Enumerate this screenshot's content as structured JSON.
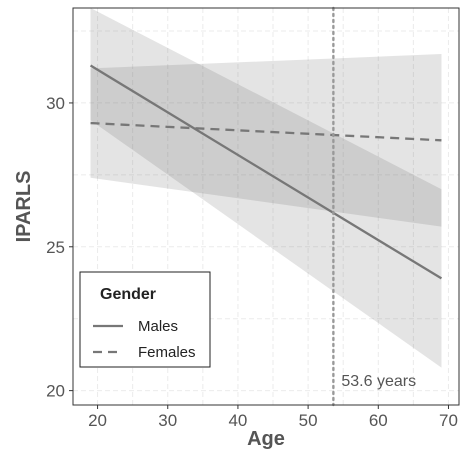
{
  "chart_data": {
    "type": "line",
    "title": "",
    "xlabel": "Age",
    "ylabel": "IPARLS",
    "xlim": [
      16.5,
      71.5
    ],
    "ylim": [
      19.5,
      33.3
    ],
    "x_ticks": [
      20,
      30,
      40,
      50,
      60,
      70
    ],
    "y_ticks": [
      20,
      25,
      30
    ],
    "grid": true,
    "legend": {
      "title": "Gender",
      "placement": "bottom-left"
    },
    "series": [
      {
        "name": "Males",
        "line_style": "solid",
        "x": [
          19,
          69
        ],
        "y": [
          31.3,
          23.9
        ],
        "ci_lower": [
          29.4,
          20.8
        ],
        "ci_upper": [
          33.3,
          27.0
        ]
      },
      {
        "name": "Females",
        "line_style": "dashed",
        "x": [
          19,
          69
        ],
        "y": [
          29.3,
          28.7
        ],
        "ci_lower": [
          27.4,
          25.7
        ],
        "ci_upper": [
          31.2,
          31.7
        ]
      }
    ],
    "reference_line": {
      "orientation": "vertical",
      "x": 53.6,
      "style": "dotted",
      "label": "53.6 years"
    },
    "colors": {
      "line": "#777777",
      "band_outer": "#e6e6e6",
      "band_overlap": "#d4d4d4",
      "grid": "#ebebeb",
      "reference": "#999999"
    }
  }
}
